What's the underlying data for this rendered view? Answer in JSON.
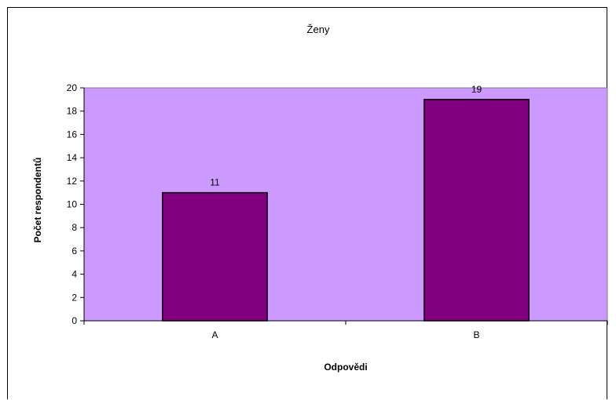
{
  "chart_data": {
    "type": "bar",
    "title": "Ženy",
    "xlabel": "Odpovědi",
    "ylabel": "Počet respondentů",
    "categories": [
      "A",
      "B"
    ],
    "values": [
      11,
      19
    ],
    "data_labels": [
      "11",
      "19"
    ],
    "yticks": [
      "0",
      "2",
      "4",
      "6",
      "8",
      "10",
      "12",
      "14",
      "16",
      "18",
      "20"
    ],
    "ylim": [
      0,
      20
    ],
    "grid": false,
    "legend": "none",
    "colors": {
      "plot_background": "#cc99ff",
      "bar_fill": "#800080",
      "bar_stroke": "#000000"
    }
  }
}
